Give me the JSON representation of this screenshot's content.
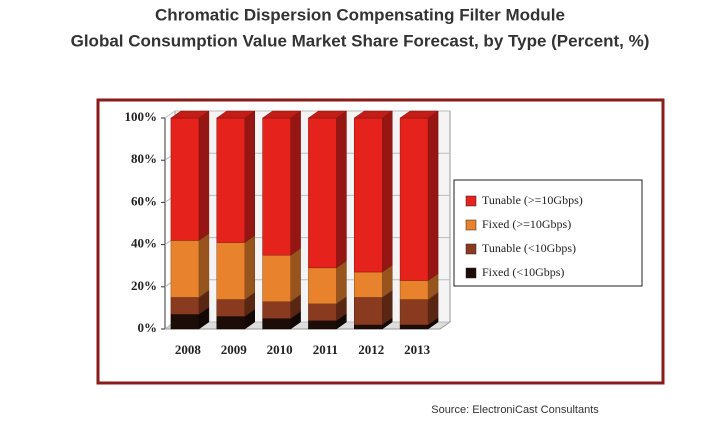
{
  "chart_data": {
    "type": "bar",
    "stacked": true,
    "title": "Chromatic Dispersion Compensating Filter Module",
    "subtitle": "Global Consumption Value Market Share Forecast, by Type (Percent, %)",
    "source": "Source: ElectroniCast Consultants",
    "categories": [
      "2008",
      "2009",
      "2010",
      "2011",
      "2012",
      "2013"
    ],
    "series": [
      {
        "name": "Fixed (<10Gbps)",
        "color": "#1c0d08",
        "values": [
          7,
          6,
          5,
          4,
          2,
          2
        ]
      },
      {
        "name": "Tunable (<10Gbps)",
        "color": "#8a3a1f",
        "values": [
          8,
          8,
          8,
          8,
          13,
          12
        ]
      },
      {
        "name": "Fixed (>=10Gbps)",
        "color": "#e8822c",
        "values": [
          27,
          27,
          22,
          17,
          12,
          9
        ]
      },
      {
        "name": "Tunable (>=10Gbps)",
        "color": "#e5221b",
        "values": [
          58,
          59,
          65,
          71,
          73,
          77
        ]
      }
    ],
    "ylim": [
      0,
      100
    ],
    "yticks": [
      {
        "value": 0,
        "label": "0%"
      },
      {
        "value": 20,
        "label": "20%"
      },
      {
        "value": 40,
        "label": "40%"
      },
      {
        "value": 60,
        "label": "60%"
      },
      {
        "value": 80,
        "label": "80%"
      },
      {
        "value": 100,
        "label": "100%"
      }
    ],
    "grid": true,
    "legend": "right"
  }
}
